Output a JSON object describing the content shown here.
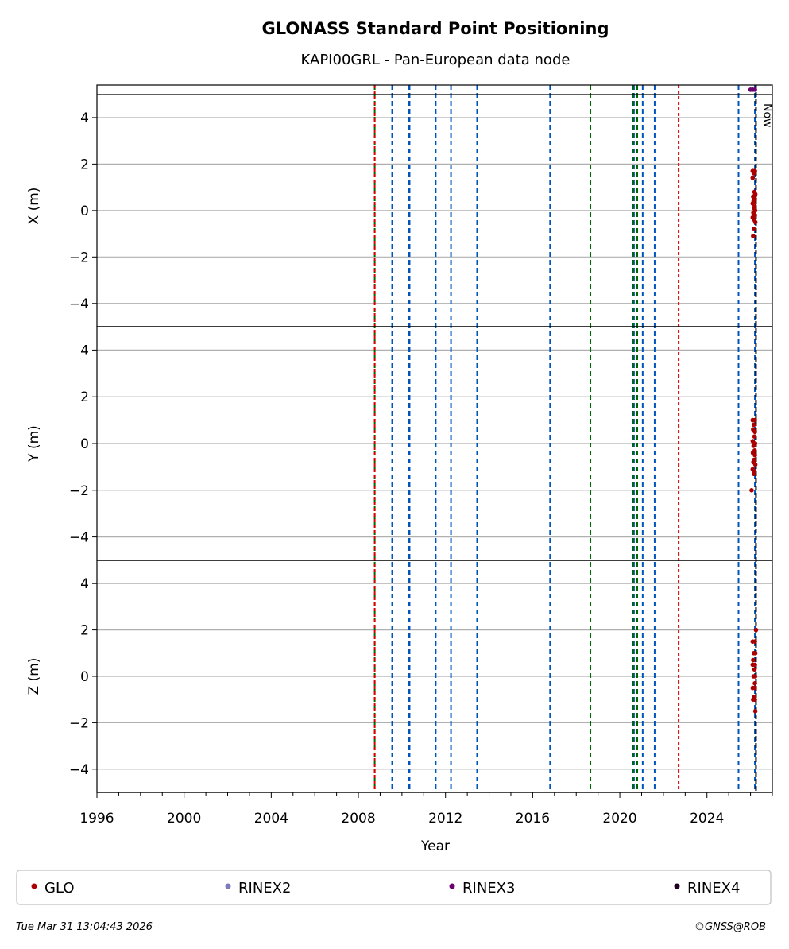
{
  "chart_data": {
    "type": "scatter",
    "title": "GLONASS Standard Point Positioning",
    "subtitle": "KAPI00GRL - Pan-European data node",
    "xlabel": "Year",
    "xlim": [
      1996,
      2027
    ],
    "x_ticks": [
      "1996",
      "2000",
      "2004",
      "2008",
      "2012",
      "2016",
      "2020",
      "2024"
    ],
    "y_ticks": [
      "4",
      "2",
      "0",
      "−2",
      "−4"
    ],
    "grid": "horizontal",
    "now_label": "Now",
    "now_year": 2026.25,
    "panels": [
      {
        "ylabel": "X (m)",
        "ylim": [
          -5,
          5.4
        ],
        "series": [
          {
            "name": "GLO",
            "x": [
              2026.1,
              2026.15,
              2026.2,
              2026.1,
              2026.18,
              2026.22,
              2026.12,
              2026.2,
              2026.14,
              2026.1,
              2026.19,
              2026.16,
              2026.21,
              2026.13,
              2026.2,
              2026.1,
              2026.17,
              2026.22,
              2026.15,
              2026.12
            ],
            "y": [
              1.7,
              1.6,
              1.7,
              1.4,
              0.8,
              0.7,
              0.6,
              0.5,
              0.4,
              0.3,
              0.2,
              0.1,
              0.0,
              -0.1,
              -0.2,
              -0.3,
              -0.4,
              -0.5,
              -0.8,
              -1.1
            ]
          },
          {
            "name": "RINEX3",
            "x": [
              2026.0,
              2026.1,
              2026.2
            ],
            "y": [
              5.2,
              5.2,
              5.2
            ]
          }
        ]
      },
      {
        "ylabel": "Y (m)",
        "ylim": [
          -5,
          5
        ],
        "series": [
          {
            "name": "GLO",
            "x": [
              2026.1,
              2026.2,
              2026.15,
              2026.12,
              2026.2,
              2026.18,
              2026.1,
              2026.21,
              2026.14,
              2026.19,
              2026.11,
              2026.2,
              2026.16,
              2026.13,
              2026.22,
              2026.1,
              2026.18,
              2026.15,
              2026.05
            ],
            "y": [
              1.0,
              1.0,
              0.8,
              0.6,
              0.5,
              0.3,
              0.1,
              0.0,
              -0.1,
              -0.3,
              -0.4,
              -0.5,
              -0.7,
              -0.8,
              -0.9,
              -1.1,
              -1.2,
              -1.3,
              -2.0
            ]
          }
        ]
      },
      {
        "ylabel": "Z (m)",
        "ylim": [
          -5,
          5
        ],
        "series": [
          {
            "name": "GLO",
            "x": [
              2026.25,
              2026.1,
              2026.2,
              2026.15,
              2026.22,
              2026.12,
              2026.2,
              2026.1,
              2026.18,
              2026.21,
              2026.14,
              2026.2,
              2026.1,
              2026.2,
              2026.16,
              2026.12,
              2026.2,
              2026.22
            ],
            "y": [
              2.0,
              1.5,
              1.5,
              1.0,
              1.0,
              0.7,
              0.5,
              0.5,
              0.3,
              0.0,
              0.0,
              -0.3,
              -0.5,
              -0.5,
              -0.9,
              -1.0,
              -1.0,
              -1.5
            ]
          }
        ]
      }
    ],
    "event_lines": {
      "blue": [
        2009.55,
        2010.3,
        2010.35,
        2011.55,
        2012.25,
        2013.45,
        2016.8,
        2020.65,
        2021.05,
        2021.6,
        2025.45,
        2026.2
      ],
      "green": [
        2008.75,
        2018.65,
        2020.6,
        2020.8
      ],
      "red": [
        2008.75,
        2022.7
      ],
      "black": [
        2026.25
      ]
    },
    "colors": {
      "GLO": "#aa0000",
      "RINEX2": "#7b7bbd",
      "RINEX3": "#6a0070",
      "RINEX4": "#200020",
      "blue": "#0055bb",
      "green": "#006600",
      "red": "#dd0000"
    },
    "legend": [
      {
        "label": "GLO",
        "color": "#aa0000"
      },
      {
        "label": "RINEX2",
        "color": "#7b7bbd"
      },
      {
        "label": "RINEX3",
        "color": "#6a0070"
      },
      {
        "label": "RINEX4",
        "color": "#200020"
      }
    ],
    "legend_position": "bottom"
  },
  "footer": {
    "timestamp": "Tue Mar 31 13:04:43 2026",
    "credit": "©GNSS@ROB"
  }
}
